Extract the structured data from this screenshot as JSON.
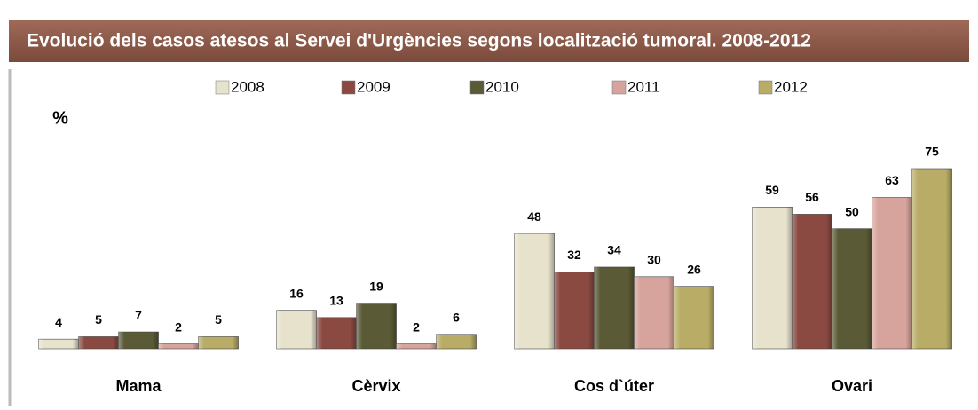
{
  "chart_data": {
    "type": "bar",
    "title": "Evolució dels casos atesos al Servei d'Urgències segons localització tumoral. 2008-2012",
    "y_label": "%",
    "categories": [
      "Mama",
      "Cèrvix",
      "Cos d`úter",
      "Ovari"
    ],
    "series": [
      {
        "name": "2008",
        "color": "#e6e2cc",
        "values": [
          4,
          16,
          48,
          59
        ]
      },
      {
        "name": "2009",
        "color": "#8a4a42",
        "values": [
          5,
          13,
          32,
          56
        ]
      },
      {
        "name": "2010",
        "color": "#5a5a36",
        "values": [
          7,
          19,
          34,
          50
        ]
      },
      {
        "name": "2011",
        "color": "#d6a49c",
        "values": [
          2,
          2,
          30,
          63
        ]
      },
      {
        "name": "2012",
        "color": "#b8ac66",
        "values": [
          5,
          6,
          26,
          75
        ]
      }
    ],
    "legend": "top"
  }
}
